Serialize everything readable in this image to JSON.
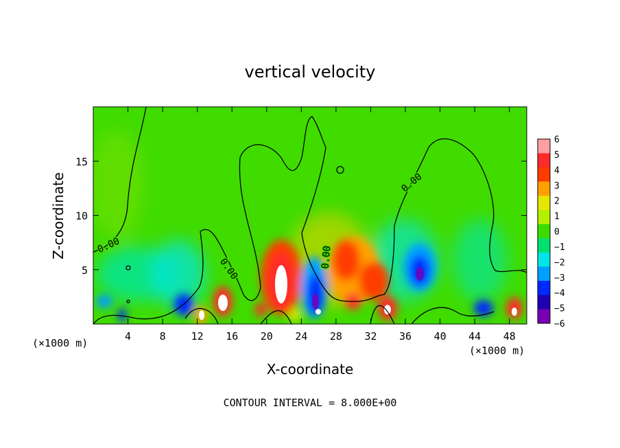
{
  "chart_data": {
    "type": "heatmap",
    "title": "vertical velocity",
    "xlabel": "X-coordinate",
    "ylabel": "Z-coordinate",
    "x_unit_label_left": "(×1000 m)",
    "x_unit_label_right": "(×1000 m)",
    "footer": "CONTOUR INTERVAL = 8.000E+00",
    "contour_label": "0.00",
    "xlim": [
      0,
      50
    ],
    "ylim": [
      0,
      20
    ],
    "x_ticks": [
      "4",
      "8",
      "12",
      "16",
      "20",
      "24",
      "28",
      "32",
      "36",
      "40",
      "44",
      "48"
    ],
    "x_tick_values": [
      4,
      8,
      12,
      16,
      20,
      24,
      28,
      32,
      36,
      40,
      44,
      48
    ],
    "y_ticks": [
      "5",
      "10",
      "15"
    ],
    "y_tick_values": [
      5,
      10,
      15
    ],
    "colorbar": {
      "labels": [
        "6",
        "5",
        "4",
        "3",
        "2",
        "1",
        "0",
        "−1",
        "−2",
        "−3",
        "−4",
        "−5",
        "−6"
      ],
      "values": [
        6,
        5,
        4,
        3,
        2,
        1,
        0,
        -1,
        -2,
        -3,
        -4,
        -5,
        -6
      ],
      "colors": [
        "#ff9f9f",
        "#ff2a2a",
        "#ff3c00",
        "#ffa000",
        "#e6e600",
        "#b4f000",
        "#3cdc00",
        "#00e070",
        "#00e6e6",
        "#00a0ff",
        "#0028ff",
        "#2000b4",
        "#7800b4"
      ]
    },
    "features": [
      {
        "x": 21.5,
        "z": 4.5,
        "value": 5.5
      },
      {
        "x": 30.0,
        "z": 5.0,
        "value": 4.0
      },
      {
        "x": 26.0,
        "z": 3.2,
        "value": -4.5
      },
      {
        "x": 37.7,
        "z": 4.8,
        "value": -5.5
      },
      {
        "x": 15.2,
        "z": 2.0,
        "value": 6.0
      },
      {
        "x": 13.0,
        "z": 1.5,
        "value": 6.0
      },
      {
        "x": 33.7,
        "z": 1.5,
        "value": 5.5
      },
      {
        "x": 48.6,
        "z": 1.4,
        "value": 5.5
      },
      {
        "x": 11.0,
        "z": 1.8,
        "value": -4.5
      },
      {
        "x": 45.0,
        "z": 1.4,
        "value": -4.0
      }
    ]
  },
  "colors": {
    "background": "#40dc00",
    "contour": "#000000"
  }
}
